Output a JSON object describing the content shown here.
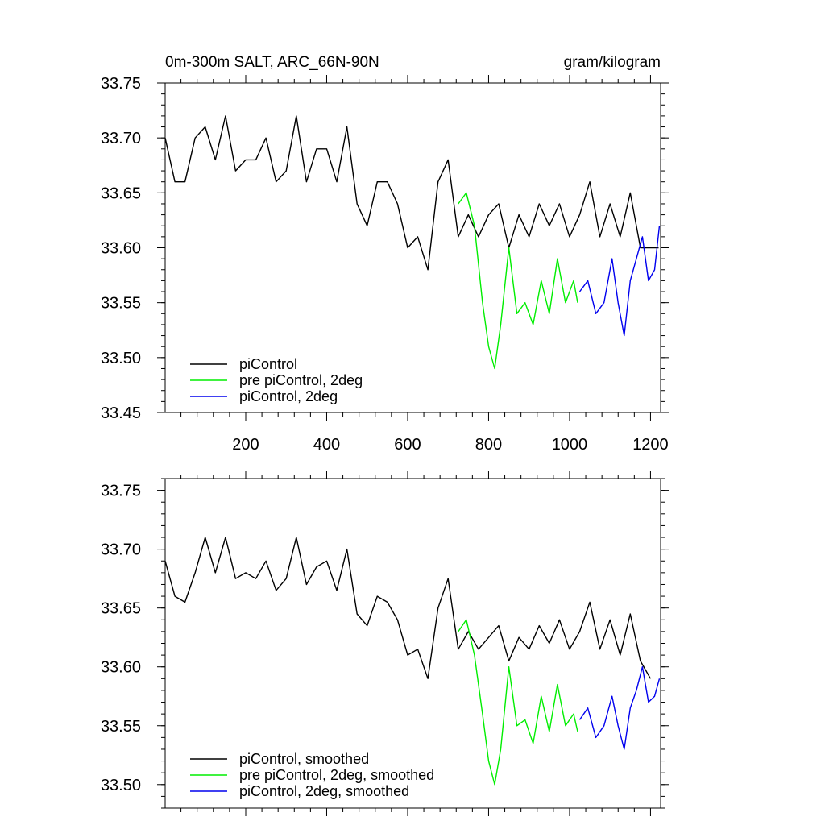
{
  "chart_data": [
    {
      "type": "line",
      "title_left": "0m-300m SALT, ARC_66N-90N",
      "title_right": "gram/kilogram",
      "xlabel": "",
      "ylabel": "",
      "xlim": [
        1,
        1225
      ],
      "ylim": [
        33.45,
        33.75
      ],
      "x_ticks": [
        200,
        400,
        600,
        800,
        1000,
        1200
      ],
      "x_tick_labels": [
        "200",
        "400",
        "600",
        "800",
        "1000",
        "1200"
      ],
      "y_ticks": [
        33.45,
        33.5,
        33.55,
        33.6,
        33.65,
        33.7,
        33.75
      ],
      "y_tick_labels": [
        "33.45",
        "33.50",
        "33.55",
        "33.60",
        "33.65",
        "33.70",
        "33.75"
      ],
      "legend_position": "bottom-left",
      "grid": false,
      "series": [
        {
          "name": "piControl",
          "color": "#000000",
          "x": [
            1,
            25,
            50,
            75,
            100,
            125,
            150,
            175,
            200,
            225,
            250,
            275,
            300,
            325,
            350,
            375,
            400,
            425,
            450,
            475,
            500,
            525,
            550,
            575,
            600,
            625,
            650,
            675,
            700,
            725,
            750,
            775,
            800,
            825,
            850,
            875,
            900,
            925,
            950,
            975,
            1000,
            1025,
            1050,
            1075,
            1100,
            1125,
            1150,
            1175,
            1200,
            1220
          ],
          "y": [
            33.7,
            33.66,
            33.66,
            33.7,
            33.71,
            33.68,
            33.72,
            33.67,
            33.68,
            33.68,
            33.7,
            33.66,
            33.67,
            33.72,
            33.66,
            33.69,
            33.69,
            33.66,
            33.71,
            33.64,
            33.62,
            33.66,
            33.66,
            33.64,
            33.6,
            33.61,
            33.58,
            33.66,
            33.68,
            33.61,
            33.63,
            33.61,
            33.63,
            33.64,
            33.6,
            33.63,
            33.61,
            33.64,
            33.62,
            33.64,
            33.61,
            33.63,
            33.66,
            33.61,
            33.64,
            33.61,
            33.65,
            33.6,
            33.6,
            33.6
          ]
        },
        {
          "name": "pre piControl, 2deg",
          "color": "#00ee00",
          "x": [
            725,
            745,
            765,
            785,
            800,
            815,
            830,
            850,
            870,
            890,
            910,
            930,
            950,
            970,
            990,
            1010,
            1020
          ],
          "y": [
            33.64,
            33.65,
            33.62,
            33.55,
            33.51,
            33.49,
            33.53,
            33.6,
            33.54,
            33.55,
            33.53,
            33.57,
            33.54,
            33.59,
            33.55,
            33.57,
            33.55
          ]
        },
        {
          "name": "piControl, 2deg",
          "color": "#0000ee",
          "x": [
            1025,
            1045,
            1065,
            1085,
            1105,
            1120,
            1135,
            1150,
            1165,
            1180,
            1195,
            1210,
            1222
          ],
          "y": [
            33.56,
            33.57,
            33.54,
            33.55,
            33.59,
            33.55,
            33.52,
            33.57,
            33.59,
            33.61,
            33.57,
            33.58,
            33.62
          ]
        }
      ]
    },
    {
      "type": "line",
      "title_left": "",
      "title_right": "",
      "xlabel": "",
      "ylabel": "",
      "xlim": [
        1,
        1225
      ],
      "ylim": [
        33.48,
        33.76
      ],
      "x_ticks": [
        200,
        400,
        600,
        800,
        1000,
        1200
      ],
      "x_tick_labels": [],
      "y_ticks": [
        33.5,
        33.55,
        33.6,
        33.65,
        33.7,
        33.75
      ],
      "y_tick_labels": [
        "33.50",
        "33.55",
        "33.60",
        "33.65",
        "33.70",
        "33.75"
      ],
      "legend_position": "bottom-left",
      "grid": false,
      "series": [
        {
          "name": "piControl, smoothed",
          "color": "#000000",
          "x": [
            1,
            25,
            50,
            75,
            100,
            125,
            150,
            175,
            200,
            225,
            250,
            275,
            300,
            325,
            350,
            375,
            400,
            425,
            450,
            475,
            500,
            525,
            550,
            575,
            600,
            625,
            650,
            675,
            700,
            725,
            750,
            775,
            800,
            825,
            850,
            875,
            900,
            925,
            950,
            975,
            1000,
            1025,
            1050,
            1075,
            1100,
            1125,
            1150,
            1175,
            1200
          ],
          "y": [
            33.69,
            33.66,
            33.655,
            33.68,
            33.71,
            33.68,
            33.71,
            33.675,
            33.68,
            33.675,
            33.69,
            33.665,
            33.675,
            33.71,
            33.67,
            33.685,
            33.69,
            33.665,
            33.7,
            33.645,
            33.635,
            33.66,
            33.655,
            33.64,
            33.61,
            33.615,
            33.59,
            33.65,
            33.675,
            33.615,
            33.63,
            33.615,
            33.625,
            33.635,
            33.605,
            33.625,
            33.615,
            33.635,
            33.62,
            33.64,
            33.615,
            33.63,
            33.655,
            33.615,
            33.64,
            33.61,
            33.645,
            33.605,
            33.59
          ]
        },
        {
          "name": "pre piControl, 2deg, smoothed",
          "color": "#00ee00",
          "x": [
            725,
            745,
            765,
            785,
            800,
            815,
            830,
            850,
            870,
            890,
            910,
            930,
            950,
            970,
            990,
            1010,
            1020
          ],
          "y": [
            33.63,
            33.64,
            33.61,
            33.56,
            33.52,
            33.5,
            33.53,
            33.6,
            33.55,
            33.555,
            33.535,
            33.575,
            33.545,
            33.585,
            33.55,
            33.56,
            33.545
          ]
        },
        {
          "name": "piControl, 2deg, smoothed",
          "color": "#0000ee",
          "x": [
            1025,
            1045,
            1065,
            1085,
            1105,
            1120,
            1135,
            1150,
            1165,
            1180,
            1195,
            1210,
            1222
          ],
          "y": [
            33.555,
            33.565,
            33.54,
            33.55,
            33.575,
            33.55,
            33.53,
            33.565,
            33.58,
            33.6,
            33.57,
            33.575,
            33.59
          ]
        }
      ]
    }
  ]
}
